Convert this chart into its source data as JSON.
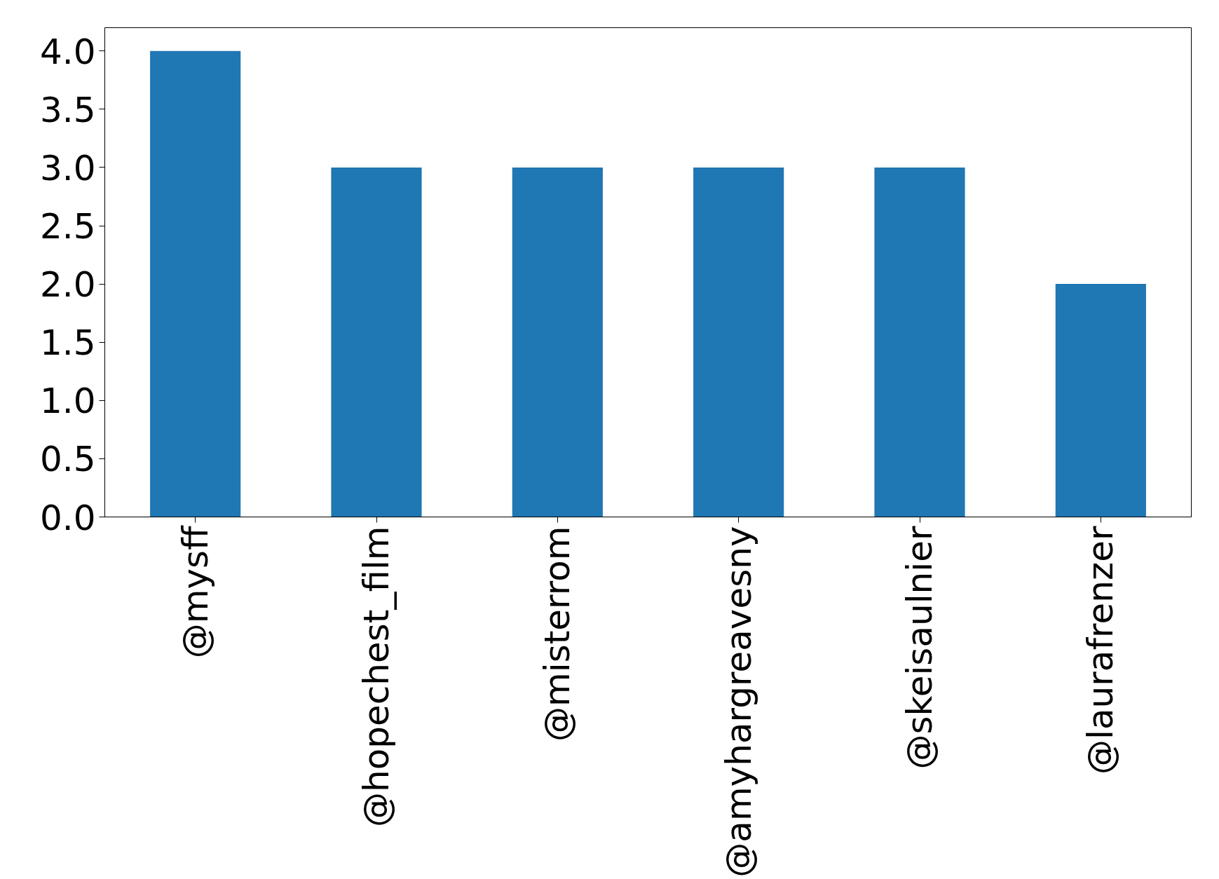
{
  "chart_data": {
    "type": "bar",
    "categories": [
      "@mysff",
      "@hopechest_film",
      "@misterrom",
      "@amyhargreavesny",
      "@skeisaulnier",
      "@laurafrenzer"
    ],
    "values": [
      4,
      3,
      3,
      3,
      3,
      2
    ],
    "color": "#1f77b4",
    "ylim": [
      0,
      4.2
    ],
    "yticks": [
      {
        "value": 0,
        "label": "0.0"
      },
      {
        "value": 0.5,
        "label": "0.5"
      },
      {
        "value": 1,
        "label": "1.0"
      },
      {
        "value": 1.5,
        "label": "1.5"
      },
      {
        "value": 2,
        "label": "2.0"
      },
      {
        "value": 2.5,
        "label": "2.5"
      },
      {
        "value": 3,
        "label": "3.0"
      },
      {
        "value": 3.5,
        "label": "3.5"
      },
      {
        "value": 4,
        "label": "4.0"
      }
    ],
    "grid": false
  }
}
